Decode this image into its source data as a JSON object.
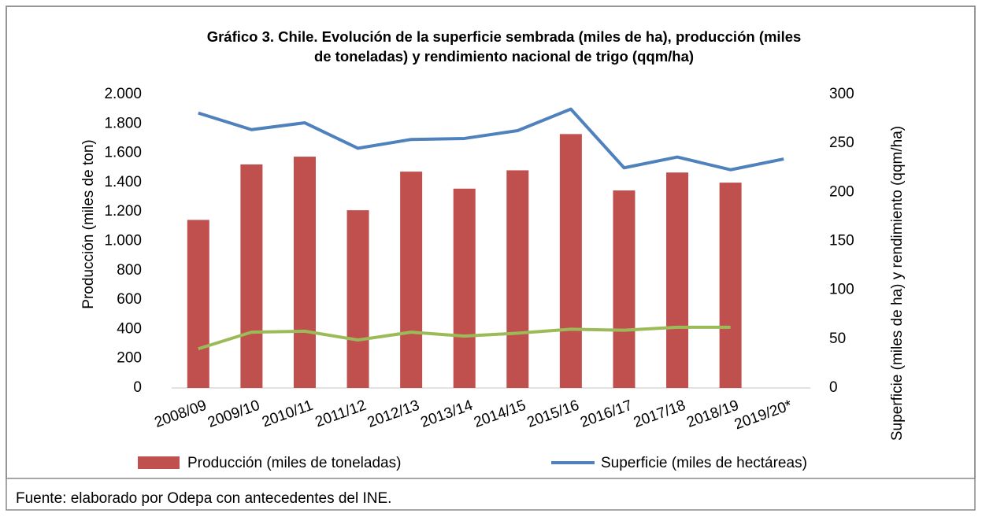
{
  "chart_data": {
    "type": "bar",
    "title": [
      "Gráfico 3. Chile. Evolución de la superficie sembrada (miles de ha), producción (miles",
      "de toneladas) y rendimiento nacional de trigo (qqm/ha)"
    ],
    "y_label": "Producción (miles de ton)",
    "y2_label": "Superficie (miles de ha) y rendimiento (qqm/ha)",
    "footer": "Fuente: elaborado por Odepa con antecedentes del INE.",
    "categories": [
      "2008/09",
      "2009/10",
      "2010/11",
      "2011/12",
      "2012/13",
      "2013/14",
      "2014/15",
      "2015/16",
      "2016/17",
      "2017/18",
      "2018/19",
      "2019/20*"
    ],
    "series": [
      {
        "name": "Producción (miles de toneladas)",
        "type": "bar",
        "color": "#c0504d",
        "values": [
          1145,
          1523,
          1576,
          1211,
          1474,
          1358,
          1483,
          1730,
          1346,
          1468,
          1399,
          null
        ]
      },
      {
        "name": "Superficie (miles de hectáreas)",
        "type": "line",
        "axis": "y2",
        "color": "#4f81bd",
        "values": [
          281,
          264,
          271,
          245,
          254,
          255,
          263,
          285,
          225,
          236,
          223,
          234
        ]
      },
      {
        "type": "line",
        "axis": "y2",
        "color": "#9bbb59",
        "values": [
          40,
          57,
          58,
          49,
          57,
          53,
          56,
          60,
          59,
          62,
          62,
          null
        ]
      }
    ],
    "ylim": [
      0,
      2000
    ],
    "yticks": [
      0,
      200,
      400,
      600,
      800,
      {
        "value": 1000,
        "label": "1.000"
      },
      {
        "value": 1200,
        "label": "1.200"
      },
      {
        "value": 1400,
        "label": "1.400"
      },
      {
        "value": 1600,
        "label": "1.600"
      },
      {
        "value": 1800,
        "label": "1.800"
      },
      {
        "value": 2000,
        "label": "2.000"
      }
    ],
    "y2lim": [
      0,
      300
    ],
    "y2ticks": [
      0,
      50,
      100,
      150,
      200,
      250,
      300
    ],
    "grid": false
  }
}
